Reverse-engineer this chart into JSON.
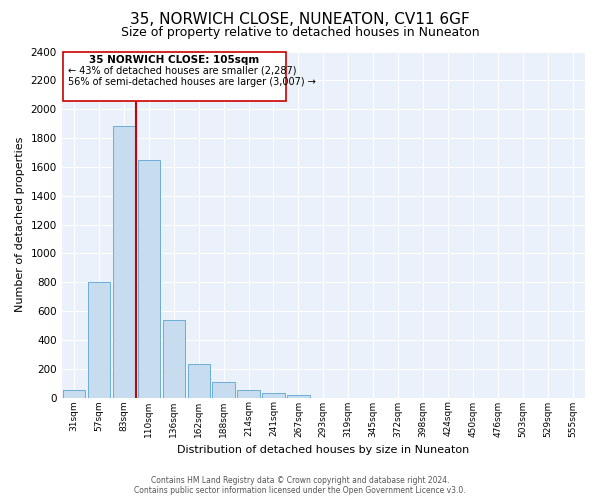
{
  "title": "35, NORWICH CLOSE, NUNEATON, CV11 6GF",
  "subtitle": "Size of property relative to detached houses in Nuneaton",
  "xlabel": "Distribution of detached houses by size in Nuneaton",
  "ylabel": "Number of detached properties",
  "bar_labels": [
    "31sqm",
    "57sqm",
    "83sqm",
    "110sqm",
    "136sqm",
    "162sqm",
    "188sqm",
    "214sqm",
    "241sqm",
    "267sqm",
    "293sqm",
    "319sqm",
    "345sqm",
    "372sqm",
    "398sqm",
    "424sqm",
    "450sqm",
    "476sqm",
    "503sqm",
    "529sqm",
    "555sqm"
  ],
  "bar_values": [
    55,
    800,
    1880,
    1650,
    540,
    235,
    110,
    55,
    30,
    15,
    0,
    0,
    0,
    0,
    0,
    0,
    0,
    0,
    0,
    0,
    0
  ],
  "bar_color": "#c8dcf0",
  "bar_edge_color": "#6baed6",
  "ylim": [
    0,
    2400
  ],
  "yticks": [
    0,
    200,
    400,
    600,
    800,
    1000,
    1200,
    1400,
    1600,
    1800,
    2000,
    2200,
    2400
  ],
  "vline_color": "#cc0000",
  "vline_x_index": 2.5,
  "annotation_box_title": "35 NORWICH CLOSE: 105sqm",
  "annotation_line1": "← 43% of detached houses are smaller (2,287)",
  "annotation_line2": "56% of semi-detached houses are larger (3,007) →",
  "footer_line1": "Contains HM Land Registry data © Crown copyright and database right 2024.",
  "footer_line2": "Contains public sector information licensed under the Open Government Licence v3.0.",
  "background_color": "#ffffff",
  "plot_bg_color": "#eaf1fb",
  "grid_color": "#ffffff",
  "title_fontsize": 11,
  "subtitle_fontsize": 9,
  "ylabel_fontsize": 8,
  "xlabel_fontsize": 8
}
